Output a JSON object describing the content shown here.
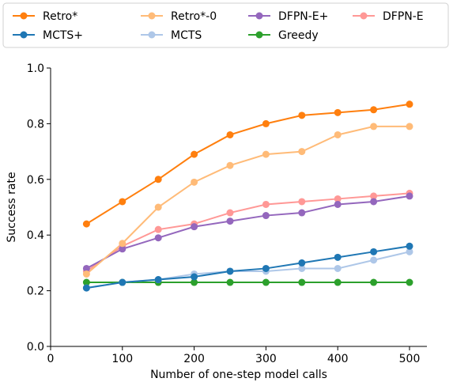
{
  "chart_data": {
    "type": "line",
    "xlabel": "Number of one-step model calls",
    "ylabel": "Success rate",
    "xlim": [
      0,
      530
    ],
    "ylim": [
      0.0,
      1.0
    ],
    "x_ticks": [
      0,
      100,
      200,
      300,
      400,
      500
    ],
    "y_ticks": [
      0.0,
      0.2,
      0.4,
      0.6,
      0.8,
      1.0
    ],
    "x_tick_labels": [
      "0",
      "100",
      "200",
      "300",
      "400",
      "500"
    ],
    "y_tick_labels": [
      "0.0",
      "0.2",
      "0.4",
      "0.6",
      "0.8",
      "1.0"
    ],
    "grid": false,
    "legend_position": "top (above plot, 4 columns)",
    "series": [
      {
        "name": "Retro*",
        "color": "#ff7f0e",
        "x": [
          50,
          100,
          150,
          200,
          250,
          300,
          350,
          400,
          450,
          500
        ],
        "values": [
          0.44,
          0.52,
          0.6,
          0.69,
          0.76,
          0.8,
          0.83,
          0.84,
          0.85,
          0.87
        ]
      },
      {
        "name": "Retro*-0",
        "color": "#ffbb78",
        "x": [
          50,
          100,
          150,
          200,
          250,
          300,
          350,
          400,
          450,
          500
        ],
        "values": [
          0.26,
          0.37,
          0.5,
          0.59,
          0.65,
          0.69,
          0.7,
          0.76,
          0.79,
          0.79
        ]
      },
      {
        "name": "DFPN-E+",
        "color": "#9467bd",
        "x": [
          50,
          100,
          150,
          200,
          250,
          300,
          350,
          400,
          450,
          500
        ],
        "values": [
          0.28,
          0.35,
          0.39,
          0.43,
          0.45,
          0.47,
          0.48,
          0.51,
          0.52,
          0.54
        ]
      },
      {
        "name": "DFPN-E",
        "color": "#ff9896",
        "x": [
          50,
          100,
          150,
          200,
          250,
          300,
          350,
          400,
          450,
          500
        ],
        "values": [
          0.27,
          0.36,
          0.42,
          0.44,
          0.48,
          0.51,
          0.52,
          0.53,
          0.54,
          0.55
        ]
      },
      {
        "name": "MCTS+",
        "color": "#1f77b4",
        "x": [
          50,
          100,
          150,
          200,
          250,
          300,
          350,
          400,
          450,
          500
        ],
        "values": [
          0.21,
          0.23,
          0.24,
          0.25,
          0.27,
          0.28,
          0.3,
          0.32,
          0.34,
          0.36
        ]
      },
      {
        "name": "MCTS",
        "color": "#aec7e8",
        "x": [
          50,
          100,
          150,
          200,
          250,
          300,
          350,
          400,
          450,
          500
        ],
        "values": [
          0.21,
          0.23,
          0.24,
          0.26,
          0.27,
          0.27,
          0.28,
          0.28,
          0.31,
          0.34
        ]
      },
      {
        "name": "Greedy",
        "color": "#2ca02c",
        "x": [
          50,
          100,
          150,
          200,
          250,
          300,
          350,
          400,
          450,
          500
        ],
        "values": [
          0.23,
          0.23,
          0.23,
          0.23,
          0.23,
          0.23,
          0.23,
          0.23,
          0.23,
          0.23
        ]
      }
    ]
  }
}
